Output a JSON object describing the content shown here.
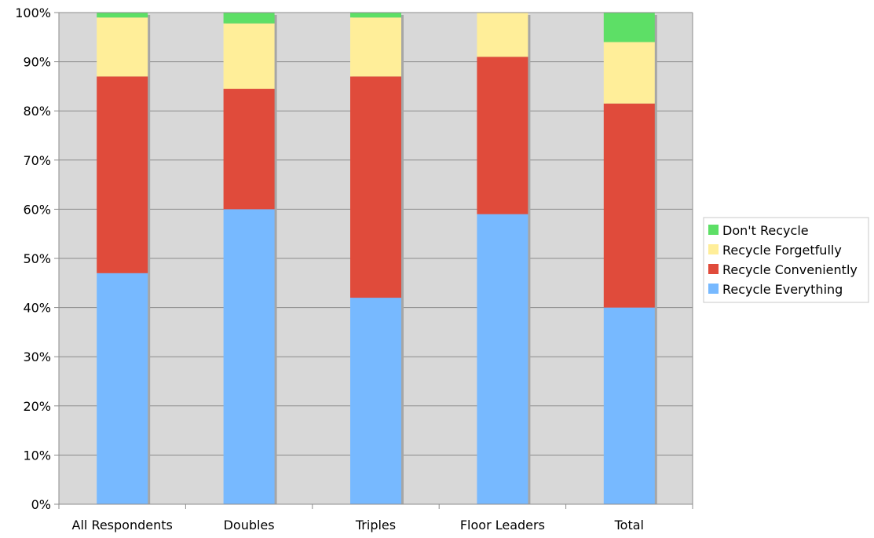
{
  "chart_data": {
    "type": "bar",
    "stacked": true,
    "categories": [
      "All Respondents",
      "Doubles",
      "Triples",
      "Floor Leaders",
      "Total"
    ],
    "series": [
      {
        "name": "Recycle Everything",
        "color": "#77b9ff",
        "values": [
          47,
          60,
          42,
          59,
          40
        ]
      },
      {
        "name": "Recycle Conveniently",
        "color": "#e04b3b",
        "values": [
          40,
          24.5,
          45,
          32,
          41.5
        ]
      },
      {
        "name": "Recycle Forgetfully",
        "color": "#ffee99",
        "values": [
          12,
          13.3,
          12,
          9,
          12.5
        ]
      },
      {
        "name": "Don't Recycle",
        "color": "#5ddf66",
        "values": [
          1,
          2.2,
          1,
          0,
          6
        ]
      }
    ],
    "ylim": [
      0,
      100
    ],
    "y_ticks": [
      "0%",
      "10%",
      "20%",
      "30%",
      "40%",
      "50%",
      "60%",
      "70%",
      "80%",
      "90%",
      "100%"
    ],
    "title": "",
    "xlabel": "",
    "ylabel": "",
    "grid": true,
    "legend_position": "right",
    "legend_order": [
      "Don't Recycle",
      "Recycle Forgetfully",
      "Recycle Conveniently",
      "Recycle Everything"
    ],
    "plot_background": "#d8d8d8"
  }
}
